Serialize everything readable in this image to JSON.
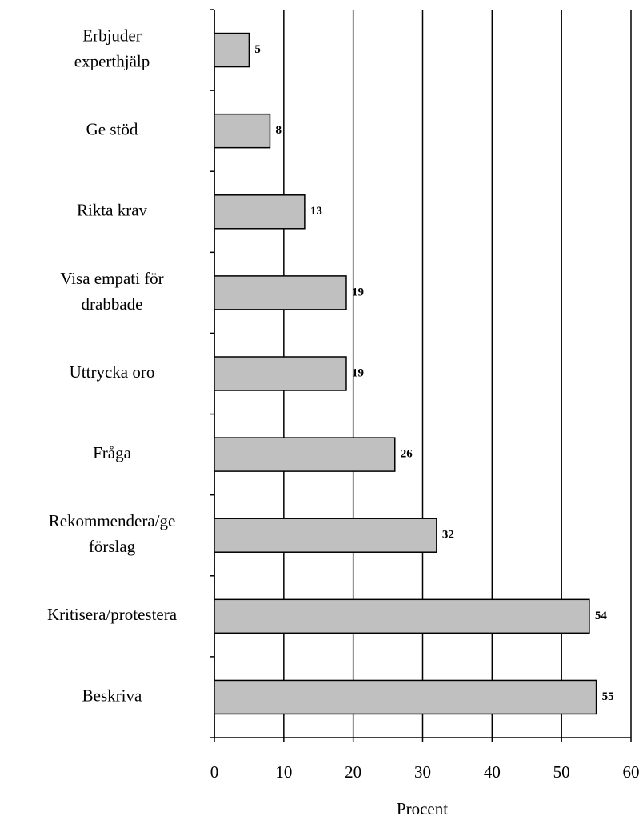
{
  "chart_data": {
    "type": "bar",
    "orientation": "horizontal",
    "x_label": "Procent",
    "categories": [
      "Erbjuder experthjälp",
      "Ge stöd",
      "Rikta krav",
      "Visa empati för drabbade",
      "Uttrycka oro",
      "Fråga",
      "Rekommendera/ge förslag",
      "Kritisera/protestera",
      "Beskriva"
    ],
    "values": [
      5,
      8,
      13,
      19,
      19,
      26,
      32,
      54,
      55
    ],
    "color": "#c0c0c0",
    "xlim": [
      0,
      60
    ],
    "xticks": [
      0,
      10,
      20,
      30,
      40,
      50,
      60
    ],
    "grid": true
  }
}
